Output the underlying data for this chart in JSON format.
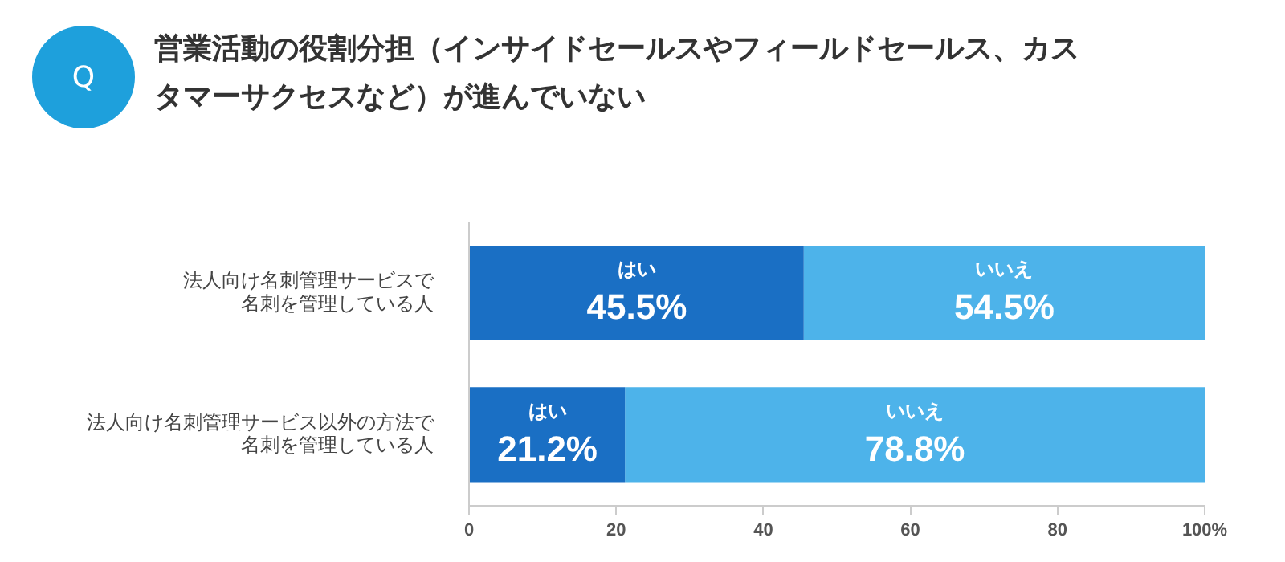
{
  "chart_data": {
    "type": "bar",
    "orientation": "horizontal",
    "stacked": true,
    "title": "営業活動の役割分担（インサイドセールスやフィールドセールス、カスタマーサクセスなど）が進んでいない",
    "annotations": [
      "Q"
    ],
    "categories": [
      "法人向け名刺管理サービスで名刺を管理している人",
      "法人向け名刺管理サービス以外の方法で名刺を管理している人"
    ],
    "series": [
      {
        "name": "はい",
        "color": "#1a6fc4",
        "values": [
          45.5,
          21.2
        ],
        "value_labels": [
          "45.5%",
          "21.2%"
        ]
      },
      {
        "name": "いいえ",
        "color": "#4db3ea",
        "values": [
          54.5,
          78.8
        ],
        "value_labels": [
          "54.5%",
          "78.8%"
        ]
      }
    ],
    "xlim": [
      0,
      100
    ],
    "xticks": [
      0,
      20,
      40,
      60,
      80,
      {
        "value": 100,
        "label": "100%"
      }
    ],
    "grid": false,
    "legend": false
  }
}
